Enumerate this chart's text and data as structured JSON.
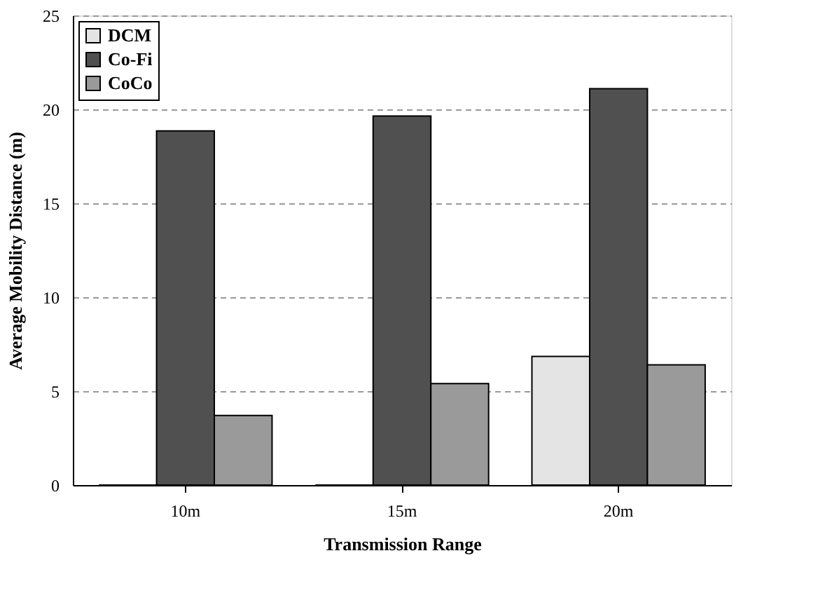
{
  "chart_data": {
    "type": "bar",
    "xlabel": "Transmission Range",
    "ylabel": "Average Mobility Distance (m)",
    "categories": [
      "10m",
      "15m",
      "20m"
    ],
    "series": [
      {
        "name": "DCM",
        "color": "#e4e4e4",
        "values": [
          0,
          0,
          6.85
        ]
      },
      {
        "name": "Co-Fi",
        "color": "#505050",
        "values": [
          18.85,
          19.65,
          21.1
        ]
      },
      {
        "name": "CoCo",
        "color": "#9a9a9a",
        "values": [
          3.7,
          5.4,
          6.4
        ]
      }
    ],
    "ylim": [
      0,
      25
    ],
    "yticks": [
      0,
      5,
      10,
      15,
      20,
      25
    ],
    "grid": "y",
    "legend": "top left"
  }
}
